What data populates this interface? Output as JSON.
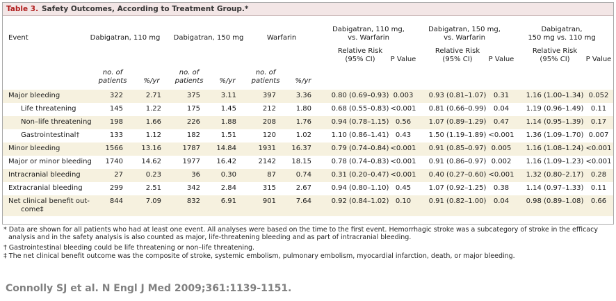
{
  "title_label": "Table 3.",
  "title": "Safety Outcomes, According to Treatment Group.*",
  "header": {
    "event": "Event",
    "groups": [
      "Dabigatran, 110 mg",
      "Dabigatran, 150 mg",
      "Warfarin"
    ],
    "comparisons": [
      [
        "Dabigatran, 110 mg,",
        "vs. Warfarin"
      ],
      [
        "Dabigatran, 150 mg,",
        "vs. Warfarin"
      ],
      [
        "Dabigatran,",
        "150 mg vs. 110 mg"
      ]
    ],
    "count_label": [
      "no. of",
      "patients"
    ],
    "rate_label": "%/yr",
    "rr_label": [
      "Relative Risk",
      "(95% CI)"
    ],
    "p_label": "P Value"
  },
  "rows": [
    {
      "event": "Major bleeding",
      "cells": [
        "322",
        "2.71",
        "375",
        "3.11",
        "397",
        "3.36",
        "0.80 (0.69–0.93)",
        "0.003",
        "0.93 (0.81–1.07)",
        "0.31",
        "1.16 (1.00–1.34)",
        "0.052"
      ]
    },
    {
      "event": "Life threatening",
      "cells": [
        "145",
        "1.22",
        "175",
        "1.45",
        "212",
        "1.80",
        "0.68 (0.55–0.83)",
        "<0.001",
        "0.81 (0.66–0.99)",
        "0.04",
        "1.19 (0.96–1.49)",
        "0.11"
      ]
    },
    {
      "event": "Non–life threatening",
      "cells": [
        "198",
        "1.66",
        "226",
        "1.88",
        "208",
        "1.76",
        "0.94 (0.78–1.15)",
        "0.56",
        "1.07 (0.89–1.29)",
        "0.47",
        "1.14 (0.95–1.39)",
        "0.17"
      ]
    },
    {
      "event": "Gastrointestinal†",
      "cells": [
        "133",
        "1.12",
        "182",
        "1.51",
        "120",
        "1.02",
        "1.10 (0.86–1.41)",
        "0.43",
        "1.50 (1.19–1.89)",
        "<0.001",
        "1.36 (1.09–1.70)",
        "0.007"
      ]
    },
    {
      "event": "Minor bleeding",
      "cells": [
        "1566",
        "13.16",
        "1787",
        "14.84",
        "1931",
        "16.37",
        "0.79 (0.74–0.84)",
        "<0.001",
        "0.91 (0.85–0.97)",
        "0.005",
        "1.16 (1.08–1.24)",
        "<0.001"
      ]
    },
    {
      "event": "Major or minor bleeding",
      "cells": [
        "1740",
        "14.62",
        "1977",
        "16.42",
        "2142",
        "18.15",
        "0.78 (0.74–0.83)",
        "<0.001",
        "0.91 (0.86–0.97)",
        "0.002",
        "1.16 (1.09–1.23)",
        "<0.001"
      ]
    },
    {
      "event": "Intracranial bleeding",
      "cells": [
        "27",
        "0.23",
        "36",
        "0.30",
        "87",
        "0.74",
        "0.31 (0.20–0.47)",
        "<0.001",
        "0.40 (0.27–0.60)",
        "<0.001",
        "1.32 (0.80–2.17)",
        "0.28"
      ]
    },
    {
      "event": "Extracranial bleeding",
      "cells": [
        "299",
        "2.51",
        "342",
        "2.84",
        "315",
        "2.67",
        "0.94 (0.80–1.10)",
        "0.45",
        "1.07 (0.92–1.25)",
        "0.38",
        "1.14 (0.97–1.33)",
        "0.11"
      ]
    },
    {
      "event": [
        "Net clinical benefit out-",
        "come‡"
      ],
      "cells": [
        "844",
        "7.09",
        "832",
        "6.91",
        "901",
        "7.64",
        "0.92 (0.84–1.02)",
        "0.10",
        "0.91 (0.82–1.00)",
        "0.04",
        "0.98 (0.89–1.08)",
        "0.66"
      ]
    }
  ],
  "footnotes": [
    "* Data are shown for all patients who had at least one event. All analyses were based on the time to the first event. Hemorrhagic stroke was a subcategory of stroke in the efficacy analysis and in the safety analysis is also counted as major, life-threatening bleeding and as part of intracranial bleeding.",
    "† Gastrointestinal bleeding could be life threatening or non–life threatening.",
    "‡ The net clinical benefit outcome was the composite of stroke, systemic embolism, pulmonary embolism, myocardial infarction, death, or major bleeding."
  ],
  "citation": "Connolly SJ et al. N Engl J Med 2009;361:1139-1151."
}
